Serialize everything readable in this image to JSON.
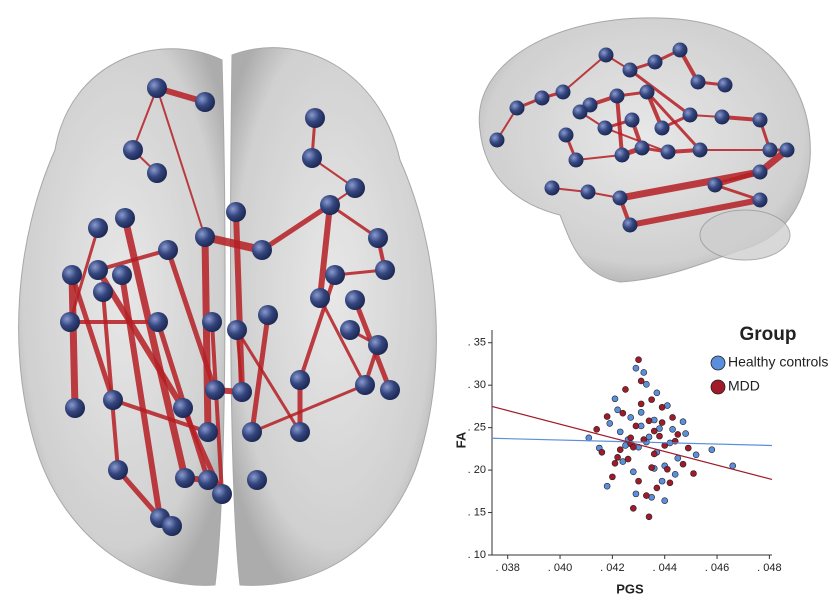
{
  "chart_data": {
    "type": "scatter",
    "xlabel": "PGS",
    "ylabel": "FA",
    "legend_title": "Group",
    "xlim": [
      0.0374,
      0.0481
    ],
    "ylim": [
      0.1,
      0.365
    ],
    "xticks": [
      {
        "value": 0.038,
        "label": ". 038"
      },
      {
        "value": 0.04,
        "label": ". 040"
      },
      {
        "value": 0.042,
        "label": ". 042"
      },
      {
        "value": 0.044,
        "label": ". 044"
      },
      {
        "value": 0.046,
        "label": ". 046"
      },
      {
        "value": 0.048,
        "label": ". 048"
      }
    ],
    "yticks": [
      {
        "value": 0.1,
        "label": ". 10"
      },
      {
        "value": 0.15,
        "label": ". 15"
      },
      {
        "value": 0.2,
        "label": ". 20"
      },
      {
        "value": 0.25,
        "label": ". 25"
      },
      {
        "value": 0.3,
        "label": ". 30"
      },
      {
        "value": 0.35,
        "label": ". 35"
      }
    ],
    "series": [
      {
        "name": "Healthy controls",
        "color": "#5b8fdc",
        "x": [
          0.0423,
          0.0431,
          0.0437,
          0.0442,
          0.0428,
          0.0419,
          0.0445,
          0.0433,
          0.0426,
          0.0439,
          0.0448,
          0.0415,
          0.0436,
          0.0429,
          0.0441,
          0.0424,
          0.0434,
          0.0452,
          0.0421,
          0.0438,
          0.043,
          0.0444,
          0.0427,
          0.0435,
          0.0411,
          0.0447,
          0.0432,
          0.044,
          0.0425,
          0.0437,
          0.0458,
          0.0418,
          0.0433,
          0.0443,
          0.0429,
          0.0436,
          0.0422,
          0.044,
          0.0431,
          0.0466
        ],
        "values": [
          0.245,
          0.268,
          0.221,
          0.232,
          0.198,
          0.255,
          0.214,
          0.301,
          0.236,
          0.187,
          0.243,
          0.226,
          0.259,
          0.172,
          0.276,
          0.21,
          0.239,
          0.218,
          0.284,
          0.249,
          0.227,
          0.195,
          0.262,
          0.168,
          0.238,
          0.257,
          0.315,
          0.205,
          0.229,
          0.291,
          0.224,
          0.181,
          0.233,
          0.248,
          0.32,
          0.202,
          0.271,
          0.164,
          0.252,
          0.205
        ],
        "fit": [
          0.2375,
          0.229
        ]
      },
      {
        "name": "MDD",
        "color": "#a01a2a",
        "x": [
          0.0427,
          0.0434,
          0.0421,
          0.0439,
          0.043,
          0.0445,
          0.0418,
          0.0436,
          0.0425,
          0.0441,
          0.0432,
          0.0428,
          0.0449,
          0.0414,
          0.0437,
          0.0423,
          0.0443,
          0.0431,
          0.0426,
          0.0438,
          0.042,
          0.0435,
          0.0447,
          0.0429,
          0.0433,
          0.044,
          0.0424,
          0.0442,
          0.0416,
          0.0436,
          0.043,
          0.0451,
          0.0427,
          0.0434,
          0.0439,
          0.0422,
          0.0444,
          0.0431,
          0.0435,
          0.0428
        ],
        "values": [
          0.231,
          0.258,
          0.208,
          0.274,
          0.187,
          0.242,
          0.263,
          0.219,
          0.295,
          0.201,
          0.236,
          0.155,
          0.226,
          0.248,
          0.179,
          0.224,
          0.262,
          0.305,
          0.213,
          0.24,
          0.192,
          0.283,
          0.207,
          0.252,
          0.17,
          0.229,
          0.267,
          0.185,
          0.221,
          0.246,
          0.33,
          0.196,
          0.238,
          0.145,
          0.256,
          0.215,
          0.234,
          0.278,
          0.203,
          0.227
        ],
        "fit": [
          0.275,
          0.189
        ]
      }
    ]
  }
}
